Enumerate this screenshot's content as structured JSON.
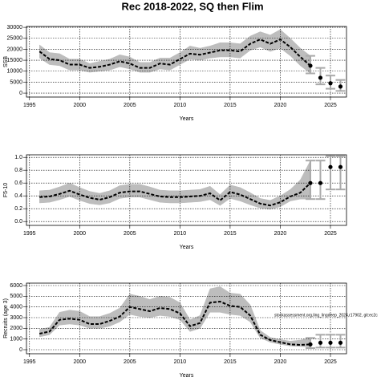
{
  "title": "Rec 2018-2022, SQ then Flim",
  "chart_data": [
    {
      "type": "line",
      "ylabel": "SSB",
      "xlabel": "Years",
      "xlim": [
        1994.7,
        2026.6
      ],
      "xticks": [
        1995,
        2000,
        2005,
        2010,
        2015,
        2020,
        2025
      ],
      "ylim": [
        -1800,
        30400
      ],
      "yticks": [
        0,
        5000,
        10000,
        15000,
        20000,
        25000,
        30000
      ],
      "grid": true,
      "color": "#000000",
      "band_color": "#bdbdbd",
      "bar_color": "#aaaaaa",
      "x": [
        1996,
        1997,
        1998,
        1999,
        2000,
        2001,
        2002,
        2003,
        2004,
        2005,
        2006,
        2007,
        2008,
        2009,
        2010,
        2011,
        2012,
        2013,
        2014,
        2015,
        2016,
        2017,
        2018,
        2019,
        2020,
        2021,
        2022,
        2023
      ],
      "values": [
        19000,
        15500,
        15000,
        13000,
        13000,
        11500,
        12000,
        13000,
        14500,
        13500,
        11500,
        11500,
        13500,
        13000,
        15500,
        18000,
        17500,
        18500,
        19500,
        19500,
        19000,
        22500,
        24500,
        22500,
        24500,
        21000,
        16500,
        12500
      ],
      "lower": [
        16000,
        13000,
        12500,
        10500,
        10500,
        9500,
        10000,
        10500,
        12000,
        11000,
        9500,
        9500,
        11000,
        10500,
        13000,
        15500,
        15000,
        16000,
        16500,
        16500,
        16000,
        19500,
        21000,
        19000,
        20500,
        17000,
        12500,
        9000
      ],
      "upper": [
        22000,
        18500,
        18000,
        15500,
        15500,
        13500,
        14500,
        15500,
        17500,
        16500,
        14000,
        14000,
        16000,
        16000,
        18500,
        21500,
        20500,
        21500,
        23000,
        23000,
        22500,
        26000,
        28000,
        26500,
        29000,
        25000,
        20500,
        17000
      ],
      "projection": {
        "x": [
          2023,
          2024,
          2025,
          2026
        ],
        "values": [
          12500,
          7000,
          4500,
          3000
        ],
        "lower": [
          9000,
          4000,
          2000,
          1000
        ],
        "upper": [
          17000,
          11500,
          8000,
          6000
        ]
      }
    },
    {
      "type": "line",
      "ylabel": "F5-10",
      "xlabel": "Years",
      "xlim": [
        1994.7,
        2026.6
      ],
      "xticks": [
        1995,
        2000,
        2005,
        2010,
        2015,
        2020,
        2025
      ],
      "ylim": [
        -0.06,
        1.04
      ],
      "yticks": [
        {
          "value": 0,
          "label": "0.0"
        },
        0.2,
        0.4,
        0.6,
        0.8,
        {
          "value": 1,
          "label": "1.0"
        }
      ],
      "grid": true,
      "color": "#000000",
      "band_color": "#bdbdbd",
      "bar_color": "#aaaaaa",
      "x": [
        1996,
        1997,
        1998,
        1999,
        2000,
        2001,
        2002,
        2003,
        2004,
        2005,
        2006,
        2007,
        2008,
        2009,
        2010,
        2011,
        2012,
        2013,
        2014,
        2015,
        2016,
        2017,
        2018,
        2019,
        2020,
        2021,
        2022,
        2023
      ],
      "values": [
        0.38,
        0.39,
        0.43,
        0.48,
        0.42,
        0.37,
        0.34,
        0.38,
        0.45,
        0.47,
        0.47,
        0.43,
        0.39,
        0.38,
        0.38,
        0.39,
        0.4,
        0.44,
        0.33,
        0.46,
        0.42,
        0.35,
        0.28,
        0.25,
        0.3,
        0.39,
        0.45,
        0.6
      ],
      "lower": [
        0.29,
        0.3,
        0.34,
        0.39,
        0.33,
        0.28,
        0.26,
        0.29,
        0.36,
        0.38,
        0.38,
        0.34,
        0.3,
        0.29,
        0.29,
        0.3,
        0.31,
        0.34,
        0.25,
        0.36,
        0.32,
        0.26,
        0.21,
        0.19,
        0.23,
        0.32,
        0.35,
        0.35
      ],
      "upper": [
        0.48,
        0.49,
        0.54,
        0.6,
        0.53,
        0.47,
        0.44,
        0.48,
        0.56,
        0.58,
        0.58,
        0.54,
        0.49,
        0.48,
        0.48,
        0.49,
        0.5,
        0.55,
        0.42,
        0.57,
        0.53,
        0.45,
        0.36,
        0.33,
        0.4,
        0.5,
        0.65,
        0.95
      ],
      "projection": {
        "x": [
          2023,
          2024,
          2025,
          2026
        ],
        "values": [
          0.6,
          0.6,
          0.85,
          0.85
        ],
        "lower": [
          0.35,
          0.35,
          0.5,
          0.5
        ],
        "upper": [
          0.95,
          0.95,
          1.02,
          1.02
        ]
      }
    },
    {
      "type": "line",
      "ylabel": "Recruits (age 3)",
      "xlabel": "Years",
      "annotation": "stockassessment.org,ling_lingdeep_2024,r17902, git:ec2c",
      "xlim": [
        1994.7,
        2026.6
      ],
      "xticks": [
        1995,
        2000,
        2005,
        2010,
        2015,
        2020,
        2025
      ],
      "ylim": [
        -375,
        6225
      ],
      "yticks": [
        0,
        1000,
        2000,
        3000,
        4000,
        5000,
        6000
      ],
      "grid": true,
      "color": "#000000",
      "band_color": "#bdbdbd",
      "bar_color": "#aaaaaa",
      "x": [
        1996,
        1997,
        1998,
        1999,
        2000,
        2001,
        2002,
        2003,
        2004,
        2005,
        2006,
        2007,
        2008,
        2009,
        2010,
        2011,
        2012,
        2013,
        2014,
        2015,
        2016,
        2017,
        2018,
        2019,
        2020,
        2021,
        2022,
        2023
      ],
      "values": [
        1500,
        1700,
        2800,
        2900,
        2800,
        2400,
        2400,
        2700,
        3100,
        4000,
        3800,
        3600,
        3900,
        3800,
        3400,
        2200,
        2500,
        4400,
        4500,
        4100,
        4000,
        3200,
        1400,
        900,
        700,
        500,
        450,
        500
      ],
      "lower": [
        1200,
        1400,
        2300,
        2400,
        2300,
        2000,
        2000,
        2200,
        2600,
        3300,
        3100,
        3000,
        3200,
        3100,
        2800,
        1700,
        2000,
        3500,
        3500,
        3300,
        3200,
        2600,
        1100,
        700,
        500,
        350,
        300,
        250
      ],
      "upper": [
        1900,
        2100,
        3500,
        3700,
        3600,
        3100,
        3100,
        3400,
        3900,
        5200,
        5000,
        4700,
        5000,
        4900,
        4400,
        2800,
        3200,
        5700,
        5900,
        5300,
        5200,
        4200,
        1800,
        1150,
        950,
        800,
        900,
        1100
      ],
      "projection": {
        "x": [
          2023,
          2024,
          2025,
          2026
        ],
        "values": [
          500,
          650,
          650,
          650
        ],
        "lower": [
          150,
          200,
          200,
          200
        ],
        "upper": [
          1100,
          1400,
          1400,
          1400
        ]
      }
    }
  ]
}
